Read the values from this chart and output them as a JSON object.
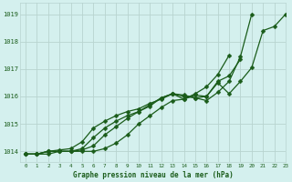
{
  "title": "Graphe pression niveau de la mer (hPa)",
  "bg_color": "#d4f0ee",
  "grid_color": "#b8d4d0",
  "line_color": "#1a5c1a",
  "text_color": "#1a5c1a",
  "xlim": [
    -0.5,
    23
  ],
  "ylim": [
    1013.6,
    1019.4
  ],
  "yticks": [
    1014,
    1015,
    1016,
    1017,
    1018,
    1019
  ],
  "xticks": [
    0,
    1,
    2,
    3,
    4,
    5,
    6,
    7,
    8,
    9,
    10,
    11,
    12,
    13,
    14,
    15,
    16,
    17,
    18,
    19,
    20,
    21,
    22,
    23
  ],
  "series": [
    {
      "x": [
        0,
        1,
        2,
        3,
        4,
        5,
        6,
        7,
        8,
        9,
        10,
        11,
        12,
        13,
        14,
        15,
        16,
        17,
        18,
        19,
        20,
        21,
        22,
        23
      ],
      "y": [
        1013.9,
        1013.9,
        1013.9,
        1014.0,
        1014.0,
        1014.0,
        1014.0,
        1014.1,
        1014.3,
        1014.6,
        1015.0,
        1015.3,
        1015.6,
        1015.85,
        1015.9,
        1016.05,
        1016.0,
        1016.5,
        1016.1,
        1016.55,
        1017.05,
        1018.4,
        1018.55,
        1019.0
      ]
    },
    {
      "x": [
        0,
        1,
        2,
        3,
        4,
        5,
        6,
        7,
        8,
        9,
        10,
        11,
        12,
        13,
        14,
        15,
        16,
        17,
        18,
        19,
        20
      ],
      "y": [
        1013.9,
        1013.9,
        1014.0,
        1014.0,
        1014.0,
        1014.05,
        1014.2,
        1014.6,
        1014.9,
        1015.2,
        1015.45,
        1015.7,
        1015.95,
        1016.1,
        1016.05,
        1015.95,
        1015.85,
        1016.15,
        1016.55,
        1017.45,
        1019.0
      ]
    },
    {
      "x": [
        0,
        1,
        2,
        3,
        4,
        5,
        6,
        7,
        8,
        9,
        10,
        11,
        12,
        13,
        14,
        15,
        16,
        17,
        18,
        19
      ],
      "y": [
        1013.9,
        1013.9,
        1014.0,
        1014.0,
        1014.0,
        1014.1,
        1014.5,
        1014.85,
        1015.1,
        1015.3,
        1015.45,
        1015.65,
        1015.95,
        1016.1,
        1016.0,
        1015.95,
        1016.0,
        1016.55,
        1016.75,
        1017.35
      ]
    },
    {
      "x": [
        0,
        1,
        2,
        3,
        4,
        5,
        6,
        7,
        8,
        9,
        10,
        11,
        12,
        13,
        14,
        15,
        16,
        17,
        18
      ],
      "y": [
        1013.9,
        1013.9,
        1014.0,
        1014.05,
        1014.1,
        1014.35,
        1014.85,
        1015.1,
        1015.3,
        1015.45,
        1015.55,
        1015.75,
        1015.9,
        1016.1,
        1015.9,
        1016.1,
        1016.35,
        1016.8,
        1017.5
      ]
    }
  ],
  "marker": "D",
  "markersize": 2.5,
  "linewidth": 0.9
}
